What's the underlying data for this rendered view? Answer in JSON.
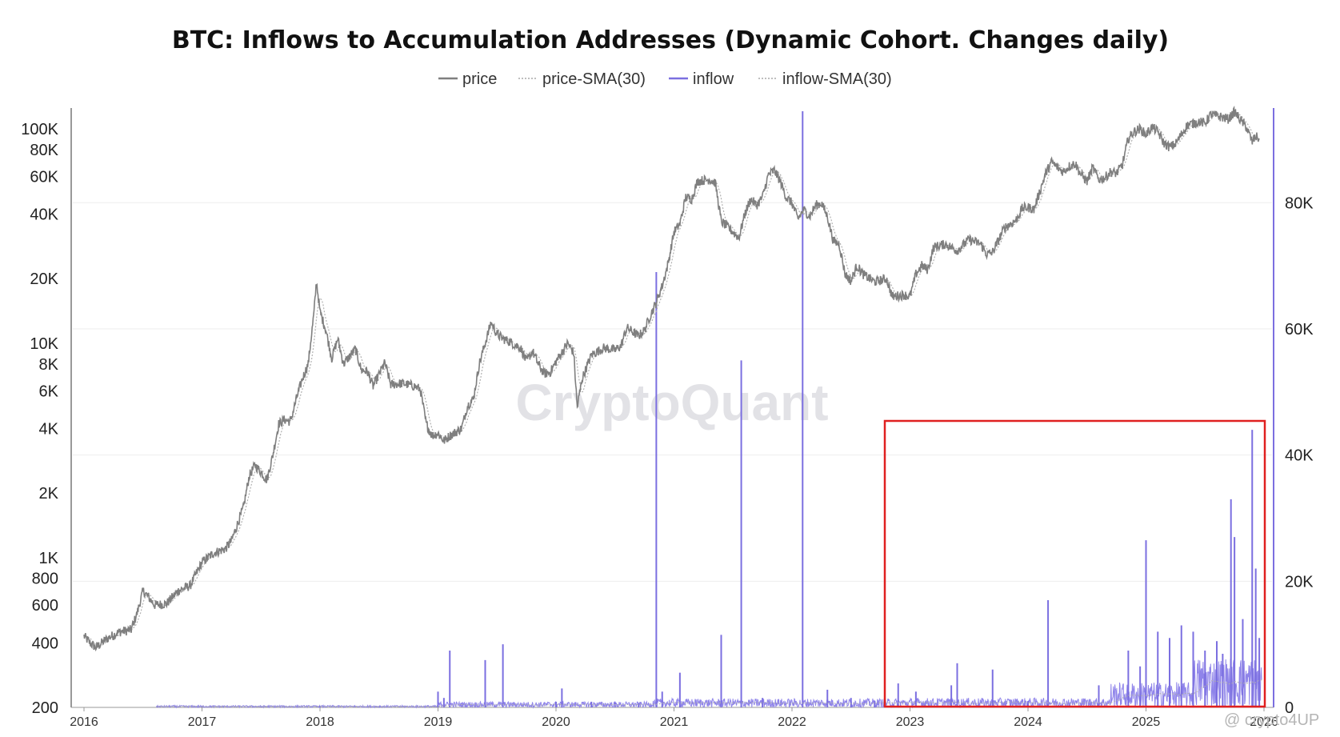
{
  "chart_data": {
    "type": "line",
    "title": "BTC: Inflows to Accumulation Addresses (Dynamic Cohort. Changes daily)",
    "legend": [
      {
        "name": "price",
        "style": "solid",
        "color": "#7f7f7f"
      },
      {
        "name": "price-SMA(30)",
        "style": "dotted",
        "color": "#a9a9a9"
      },
      {
        "name": "inflow",
        "style": "solid",
        "color": "#7b6fe0"
      },
      {
        "name": "inflow-SMA(30)",
        "style": "dotted",
        "color": "#a9a9a9"
      }
    ],
    "legend_position": "top-center",
    "x_axis": {
      "ticks": [
        "2016",
        "2017",
        "2018",
        "2019",
        "2020",
        "2021",
        "2022",
        "2023",
        "2024",
        "2025",
        "2026"
      ]
    },
    "y_left": {
      "scale": "log",
      "range": [
        200,
        125000
      ],
      "ticks": [
        {
          "label": "200",
          "value": 200
        },
        {
          "label": "400",
          "value": 400
        },
        {
          "label": "600",
          "value": 600
        },
        {
          "label": "800",
          "value": 800
        },
        {
          "label": "1K",
          "value": 1000
        },
        {
          "label": "2K",
          "value": 2000
        },
        {
          "label": "4K",
          "value": 4000
        },
        {
          "label": "6K",
          "value": 6000
        },
        {
          "label": "8K",
          "value": 8000
        },
        {
          "label": "10K",
          "value": 10000
        },
        {
          "label": "20K",
          "value": 20000
        },
        {
          "label": "40K",
          "value": 40000
        },
        {
          "label": "60K",
          "value": 60000
        },
        {
          "label": "80K",
          "value": 80000
        },
        {
          "label": "100K",
          "value": 100000
        }
      ]
    },
    "y_right": {
      "scale": "linear",
      "range": [
        0,
        95000
      ],
      "ticks": [
        {
          "label": "0",
          "value": 0
        },
        {
          "label": "20K",
          "value": 20000
        },
        {
          "label": "40K",
          "value": 40000
        },
        {
          "label": "60K",
          "value": 60000
        },
        {
          "label": "80K",
          "value": 80000
        }
      ]
    },
    "price_series": {
      "name": "price",
      "points": [
        [
          2016.0,
          430
        ],
        [
          2016.05,
          400
        ],
        [
          2016.1,
          380
        ],
        [
          2016.2,
          420
        ],
        [
          2016.3,
          450
        ],
        [
          2016.4,
          460
        ],
        [
          2016.45,
          550
        ],
        [
          2016.5,
          700
        ],
        [
          2016.55,
          650
        ],
        [
          2016.6,
          600
        ],
        [
          2016.7,
          610
        ],
        [
          2016.8,
          700
        ],
        [
          2016.9,
          740
        ],
        [
          2017.0,
          950
        ],
        [
          2017.05,
          1000
        ],
        [
          2017.1,
          1050
        ],
        [
          2017.2,
          1100
        ],
        [
          2017.25,
          1200
        ],
        [
          2017.35,
          1700
        ],
        [
          2017.4,
          2400
        ],
        [
          2017.45,
          2700
        ],
        [
          2017.5,
          2500
        ],
        [
          2017.55,
          2300
        ],
        [
          2017.6,
          3000
        ],
        [
          2017.65,
          4200
        ],
        [
          2017.7,
          4400
        ],
        [
          2017.75,
          4300
        ],
        [
          2017.8,
          5500
        ],
        [
          2017.85,
          6800
        ],
        [
          2017.9,
          8000
        ],
        [
          2017.95,
          14000
        ],
        [
          2017.97,
          19500
        ],
        [
          2018.0,
          14000
        ],
        [
          2018.05,
          11500
        ],
        [
          2018.1,
          8500
        ],
        [
          2018.15,
          10500
        ],
        [
          2018.2,
          8000
        ],
        [
          2018.3,
          9400
        ],
        [
          2018.35,
          7500
        ],
        [
          2018.4,
          7400
        ],
        [
          2018.45,
          6300
        ],
        [
          2018.55,
          8100
        ],
        [
          2018.6,
          6400
        ],
        [
          2018.7,
          6500
        ],
        [
          2018.8,
          6300
        ],
        [
          2018.85,
          6100
        ],
        [
          2018.9,
          4200
        ],
        [
          2018.95,
          3700
        ],
        [
          2019.0,
          3800
        ],
        [
          2019.05,
          3500
        ],
        [
          2019.1,
          3700
        ],
        [
          2019.2,
          4000
        ],
        [
          2019.25,
          5100
        ],
        [
          2019.3,
          5500
        ],
        [
          2019.35,
          8000
        ],
        [
          2019.45,
          12500
        ],
        [
          2019.5,
          11000
        ],
        [
          2019.55,
          10500
        ],
        [
          2019.6,
          10200
        ],
        [
          2019.7,
          9500
        ],
        [
          2019.75,
          8200
        ],
        [
          2019.8,
          9200
        ],
        [
          2019.85,
          8000
        ],
        [
          2019.9,
          7200
        ],
        [
          2019.95,
          7300
        ],
        [
          2020.0,
          8200
        ],
        [
          2020.1,
          10000
        ],
        [
          2020.15,
          9000
        ],
        [
          2020.18,
          5000
        ],
        [
          2020.22,
          6800
        ],
        [
          2020.3,
          8800
        ],
        [
          2020.4,
          9500
        ],
        [
          2020.5,
          9300
        ],
        [
          2020.55,
          9700
        ],
        [
          2020.6,
          11800
        ],
        [
          2020.7,
          10800
        ],
        [
          2020.75,
          11500
        ],
        [
          2020.8,
          13500
        ],
        [
          2020.85,
          15500
        ],
        [
          2020.9,
          18500
        ],
        [
          2020.95,
          23500
        ],
        [
          2021.0,
          33000
        ],
        [
          2021.05,
          36000
        ],
        [
          2021.1,
          48000
        ],
        [
          2021.15,
          47000
        ],
        [
          2021.2,
          57000
        ],
        [
          2021.3,
          58000
        ],
        [
          2021.35,
          56000
        ],
        [
          2021.4,
          37000
        ],
        [
          2021.45,
          35000
        ],
        [
          2021.5,
          33000
        ],
        [
          2021.55,
          31000
        ],
        [
          2021.6,
          40000
        ],
        [
          2021.65,
          47000
        ],
        [
          2021.7,
          44000
        ],
        [
          2021.75,
          48000
        ],
        [
          2021.8,
          61000
        ],
        [
          2021.85,
          64000
        ],
        [
          2021.9,
          57000
        ],
        [
          2021.95,
          48000
        ],
        [
          2022.0,
          45000
        ],
        [
          2022.05,
          38000
        ],
        [
          2022.1,
          42000
        ],
        [
          2022.15,
          39000
        ],
        [
          2022.2,
          44000
        ],
        [
          2022.25,
          45000
        ],
        [
          2022.3,
          39000
        ],
        [
          2022.35,
          30000
        ],
        [
          2022.4,
          29000
        ],
        [
          2022.45,
          21000
        ],
        [
          2022.5,
          19500
        ],
        [
          2022.55,
          23000
        ],
        [
          2022.6,
          21000
        ],
        [
          2022.7,
          19300
        ],
        [
          2022.8,
          20000
        ],
        [
          2022.85,
          16500
        ],
        [
          2022.95,
          16800
        ],
        [
          2023.0,
          16500
        ],
        [
          2023.05,
          21000
        ],
        [
          2023.1,
          23000
        ],
        [
          2023.15,
          22000
        ],
        [
          2023.2,
          28000
        ],
        [
          2023.3,
          29000
        ],
        [
          2023.4,
          27000
        ],
        [
          2023.5,
          30500
        ],
        [
          2023.6,
          29000
        ],
        [
          2023.65,
          26000
        ],
        [
          2023.7,
          26500
        ],
        [
          2023.8,
          34500
        ],
        [
          2023.9,
          37500
        ],
        [
          2023.95,
          42500
        ],
        [
          2024.0,
          43000
        ],
        [
          2024.05,
          42000
        ],
        [
          2024.1,
          51000
        ],
        [
          2024.15,
          62000
        ],
        [
          2024.2,
          70000
        ],
        [
          2024.25,
          66000
        ],
        [
          2024.3,
          63000
        ],
        [
          2024.35,
          67000
        ],
        [
          2024.4,
          69000
        ],
        [
          2024.45,
          61000
        ],
        [
          2024.5,
          57000
        ],
        [
          2024.55,
          66000
        ],
        [
          2024.6,
          58000
        ],
        [
          2024.65,
          59000
        ],
        [
          2024.7,
          63000
        ],
        [
          2024.75,
          62000
        ],
        [
          2024.8,
          68000
        ],
        [
          2024.85,
          90000
        ],
        [
          2024.9,
          97000
        ],
        [
          2024.95,
          100000
        ],
        [
          2025.0,
          94000
        ],
        [
          2025.05,
          102000
        ],
        [
          2025.1,
          97000
        ],
        [
          2025.15,
          86000
        ],
        [
          2025.2,
          82000
        ],
        [
          2025.25,
          85000
        ],
        [
          2025.3,
          94000
        ],
        [
          2025.35,
          104000
        ],
        [
          2025.45,
          108000
        ],
        [
          2025.5,
          106000
        ],
        [
          2025.55,
          117000
        ],
        [
          2025.6,
          115000
        ],
        [
          2025.65,
          113000
        ],
        [
          2025.7,
          111000
        ],
        [
          2025.75,
          120000
        ],
        [
          2025.8,
          110000
        ],
        [
          2025.85,
          102000
        ],
        [
          2025.9,
          87000
        ],
        [
          2025.93,
          92000
        ],
        [
          2025.96,
          90000
        ]
      ]
    },
    "inflow_series": {
      "name": "inflow",
      "spikes": [
        [
          2016.62,
          250
        ],
        [
          2017.0,
          150
        ],
        [
          2017.5,
          180
        ],
        [
          2018.0,
          200
        ],
        [
          2018.5,
          200
        ],
        [
          2019.0,
          2500
        ],
        [
          2019.05,
          1500
        ],
        [
          2019.1,
          9000
        ],
        [
          2019.4,
          7500
        ],
        [
          2019.55,
          10000
        ],
        [
          2020.0,
          900
        ],
        [
          2020.05,
          3000
        ],
        [
          2020.3,
          900
        ],
        [
          2020.5,
          800
        ],
        [
          2020.7,
          700
        ],
        [
          2020.85,
          69000
        ],
        [
          2020.9,
          2500
        ],
        [
          2021.05,
          5500
        ],
        [
          2021.4,
          11500
        ],
        [
          2021.57,
          55000
        ],
        [
          2021.75,
          1500
        ],
        [
          2022.09,
          94500
        ],
        [
          2022.3,
          2800
        ],
        [
          2022.5,
          1500
        ],
        [
          2022.7,
          1000
        ],
        [
          2022.9,
          3800
        ],
        [
          2023.05,
          2500
        ],
        [
          2023.35,
          3500
        ],
        [
          2023.4,
          7000
        ],
        [
          2023.7,
          6000
        ],
        [
          2024.0,
          1000
        ],
        [
          2024.17,
          17000
        ],
        [
          2024.6,
          3500
        ],
        [
          2024.85,
          9000
        ],
        [
          2024.95,
          6500
        ],
        [
          2025.0,
          26500
        ],
        [
          2025.1,
          12000
        ],
        [
          2025.2,
          11000
        ],
        [
          2025.3,
          13000
        ],
        [
          2025.4,
          12000
        ],
        [
          2025.5,
          9000
        ],
        [
          2025.6,
          10500
        ],
        [
          2025.65,
          8500
        ],
        [
          2025.72,
          33000
        ],
        [
          2025.75,
          27000
        ],
        [
          2025.82,
          14000
        ],
        [
          2025.9,
          44000
        ],
        [
          2025.93,
          22000
        ],
        [
          2025.96,
          11000
        ]
      ]
    },
    "watermark": "CryptoQuant",
    "credit": "@ crypto4UP"
  }
}
